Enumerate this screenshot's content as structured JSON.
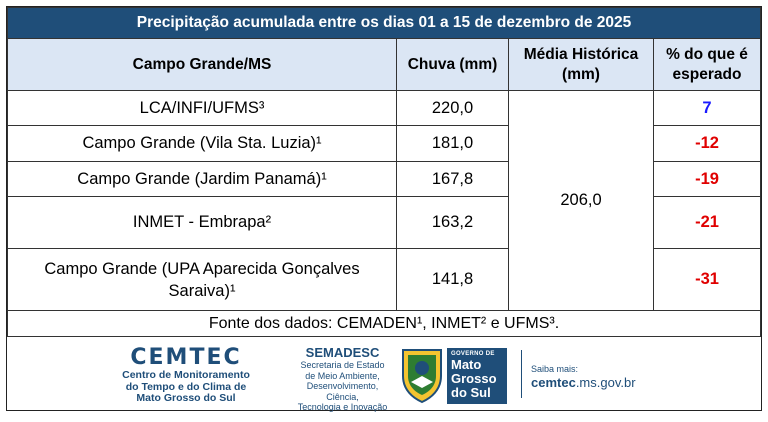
{
  "table": {
    "title": "Precipitação acumulada entre os dias 01 a 15 de dezembro de 2025",
    "headers": {
      "station": "Campo Grande/MS",
      "rain": "Chuva (mm)",
      "avg_line1": "Média Histórica",
      "avg_line2": "(mm)",
      "pct_line1": "% do que é",
      "pct_line2": "esperado"
    },
    "historical_average": "206,0",
    "rows": [
      {
        "station": "LCA/INFI/UFMS³",
        "rain": "220,0",
        "pct": "7"
      },
      {
        "station": "Campo Grande (Vila Sta. Luzia)¹",
        "rain": "181,0",
        "pct": "-12"
      },
      {
        "station": "Campo Grande (Jardim Panamá)¹",
        "rain": "167,8",
        "pct": "-19"
      },
      {
        "station": "INMET - Embrapa²",
        "rain": "163,2",
        "pct": "-21"
      },
      {
        "station_line1": "Campo Grande (UPA Aparecida Gonçalves",
        "station_line2": "Saraiva)¹",
        "rain": "141,8",
        "pct": "-31"
      }
    ],
    "source": "Fonte dos dados:  CEMADEN¹, INMET² e UFMS³."
  },
  "footer": {
    "cemtec_logo": "CEMTEC",
    "cemtec_line1": "Centro de Monitoramento",
    "cemtec_line2": "do Tempo e do Clima de",
    "cemtec_line3": "Mato Grosso do Sul",
    "semadesc_logo": "SEMADESC",
    "semadesc_line1": "Secretaria de Estado",
    "semadesc_line2": "de Meio Ambiente,",
    "semadesc_line3": "Desenvolvimento, Ciência,",
    "semadesc_line4": "Tecnologia e Inovação",
    "gov_label": "GOVERNO DE",
    "gov_line1": "Mato",
    "gov_line2": "Grosso",
    "gov_line3": "do Sul",
    "more_label": "Saiba mais:",
    "more_url_bold": "cemtec",
    "more_url_rest": ".ms.gov.br"
  },
  "colors": {
    "title_bg": "#1f4e79",
    "header_bg": "#dbe6f4",
    "positive": "#1a1aff",
    "negative": "#e00000"
  }
}
